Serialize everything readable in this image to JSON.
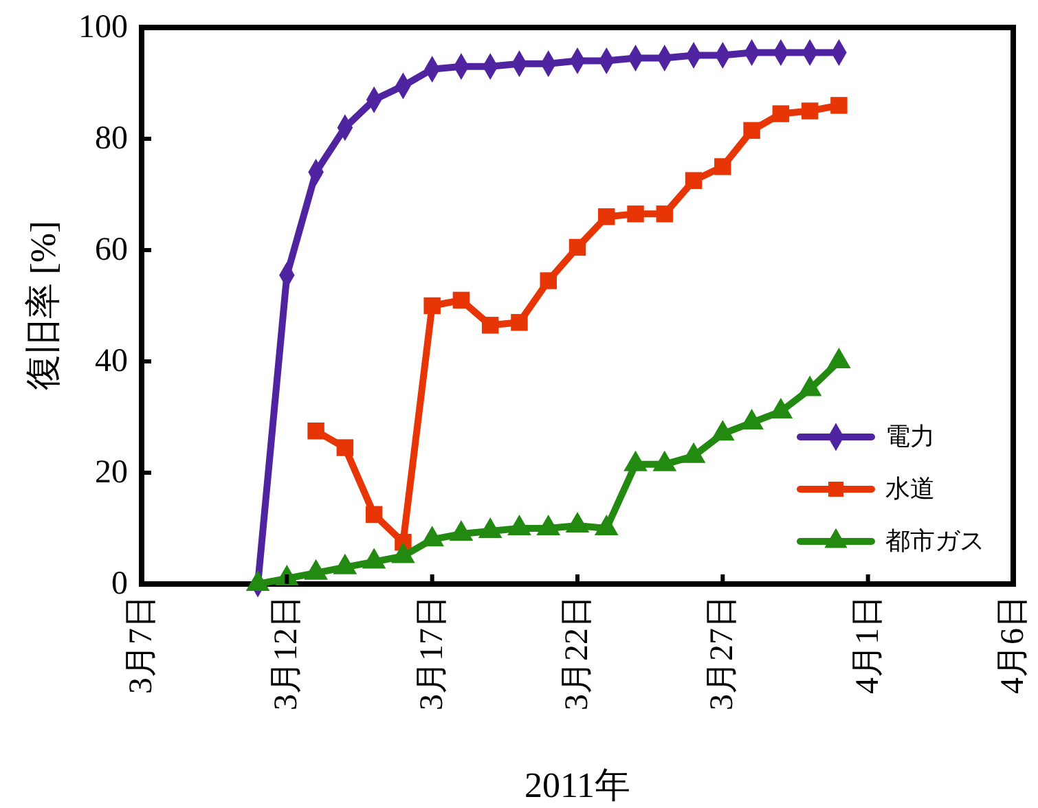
{
  "chart_data": {
    "type": "line",
    "xlabel": "2011年",
    "ylabel": "復旧率 [%]",
    "x": [
      "2011-03-11",
      "2011-03-12",
      "2011-03-13",
      "2011-03-14",
      "2011-03-15",
      "2011-03-16",
      "2011-03-17",
      "2011-03-18",
      "2011-03-19",
      "2011-03-20",
      "2011-03-21",
      "2011-03-22",
      "2011-03-23",
      "2011-03-24",
      "2011-03-25",
      "2011-03-26",
      "2011-03-27",
      "2011-03-28",
      "2011-03-29",
      "2011-03-30",
      "2011-03-31"
    ],
    "series": [
      {
        "name": "電力",
        "color": "#5024a0",
        "marker": "diamond",
        "values": [
          0,
          55.5,
          74,
          82,
          87,
          89.5,
          92.5,
          93,
          93,
          93.5,
          93.5,
          94,
          94,
          94.5,
          94.5,
          95,
          95,
          95.5,
          95.5,
          95.5,
          95.5
        ]
      },
      {
        "name": "水道",
        "color": "#e83505",
        "marker": "square",
        "values": [
          null,
          null,
          27.5,
          24.5,
          12.5,
          7.5,
          50,
          51,
          46.5,
          47,
          54.5,
          60.5,
          66,
          66.5,
          66.5,
          72.5,
          75,
          81.5,
          84.5,
          85,
          86
        ]
      },
      {
        "name": "都市ガス",
        "color": "#228a10",
        "marker": "triangle",
        "values": [
          0,
          1,
          2,
          3,
          4,
          5,
          8,
          9,
          9.5,
          10,
          10,
          10.5,
          10,
          21.5,
          21.5,
          23,
          27,
          29,
          31,
          35,
          40
        ]
      }
    ],
    "xlim": [
      "2011-03-07",
      "2011-04-06"
    ],
    "xticks": [
      {
        "value": "2011-03-07",
        "label": "3月7日"
      },
      {
        "value": "2011-03-12",
        "label": "3月12日"
      },
      {
        "value": "2011-03-17",
        "label": "3月17日"
      },
      {
        "value": "2011-03-22",
        "label": "3月22日"
      },
      {
        "value": "2011-03-27",
        "label": "3月27日"
      },
      {
        "value": "2011-04-01",
        "label": "4月1日"
      },
      {
        "value": "2011-04-06",
        "label": "4月6日"
      }
    ],
    "ylim": [
      0,
      100
    ],
    "yticks": [
      0,
      20,
      40,
      60,
      80,
      100
    ],
    "legend": "bottom right",
    "line_style": "solid",
    "grid": false
  }
}
